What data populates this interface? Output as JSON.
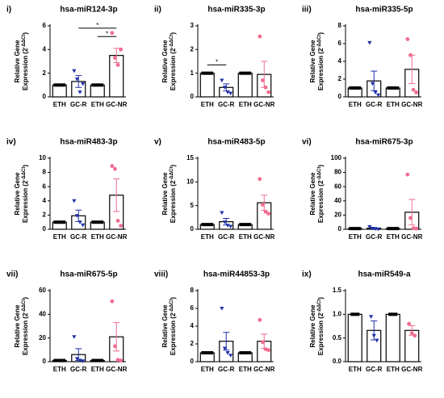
{
  "chart_data": [
    {
      "type": "bar",
      "panel": "i)",
      "title": "hsa-miR124-3p",
      "y_label": {
        "line1": "Relative Gene",
        "line2": "Expression (2",
        "sup": "-ΔΔCt",
        "close": ")"
      },
      "categories": [
        "ETH",
        "GC-R",
        "ETH",
        "GC-NR"
      ],
      "values": [
        1,
        1.3,
        1,
        3.5
      ],
      "errors": [
        0.05,
        0.5,
        0.05,
        0.6
      ],
      "points": [
        [
          1,
          1,
          1,
          1
        ],
        [
          2.2,
          1.5,
          0.4,
          1.1
        ],
        [
          1,
          1,
          1,
          1
        ],
        [
          5.4,
          3.3,
          2.7,
          4.0
        ]
      ],
      "colors": [
        "#000000",
        "#1f2fa8",
        "#000000",
        "#f06d8f"
      ],
      "markers": [
        "square",
        "triangle-down",
        "square",
        "circle"
      ],
      "ylim": [
        0,
        6
      ],
      "yticks": [
        0,
        2,
        4,
        6
      ],
      "significance": [
        {
          "from": 1,
          "to": 3,
          "y": 5.8,
          "label": "*"
        },
        {
          "from": 2,
          "to": 3,
          "y": 5.1,
          "label": "*"
        }
      ]
    },
    {
      "type": "bar",
      "panel": "ii)",
      "title": "hsa-miR335-3p",
      "y_label": {
        "line1": "Relative Gene",
        "line2": "Expression (2",
        "sup": "-ΔΔCt",
        "close": ")"
      },
      "categories": [
        "ETH",
        "GC-R",
        "ETH",
        "GC-NR"
      ],
      "values": [
        1,
        0.4,
        1,
        0.95
      ],
      "errors": [
        0.02,
        0.15,
        0.02,
        0.55
      ],
      "points": [
        [
          1,
          1,
          1,
          1
        ],
        [
          0.7,
          0.4,
          0.2,
          0.15
        ],
        [
          1,
          1,
          1,
          1
        ],
        [
          2.55,
          0.7,
          0.4,
          0.2
        ]
      ],
      "colors": [
        "#000000",
        "#1f2fa8",
        "#000000",
        "#f06d8f"
      ],
      "markers": [
        "square",
        "triangle-down",
        "square",
        "circle"
      ],
      "ylim": [
        0,
        3
      ],
      "yticks": [
        0,
        1,
        2,
        3
      ],
      "significance": [
        {
          "from": 0,
          "to": 1,
          "y": 1.35,
          "label": "*"
        }
      ]
    },
    {
      "type": "bar",
      "panel": "iii)",
      "title": "hsa-miR335-5p",
      "y_label": {
        "line1": "Relative Gene",
        "line2": "Expression (2",
        "sup": "-ΔΔCt",
        "close": ")"
      },
      "categories": [
        "ETH",
        "GC-R",
        "ETH",
        "GC-NR"
      ],
      "values": [
        1,
        1.8,
        1,
        3.1
      ],
      "errors": [
        0.05,
        1.1,
        0.05,
        1.6
      ],
      "points": [
        [
          1,
          1,
          1,
          1
        ],
        [
          6.1,
          1.5,
          0.5,
          0.2
        ],
        [
          1,
          1,
          1,
          1
        ],
        [
          6.5,
          4.7,
          0.8,
          0.5
        ]
      ],
      "colors": [
        "#000000",
        "#1f2fa8",
        "#000000",
        "#f06d8f"
      ],
      "markers": [
        "square",
        "triangle-down",
        "square",
        "circle"
      ],
      "ylim": [
        0,
        8
      ],
      "yticks": [
        0,
        2,
        4,
        6,
        8
      ],
      "significance": []
    },
    {
      "type": "bar",
      "panel": "iv)",
      "title": "hsa-miR483-3p",
      "y_label": {
        "line1": "Relative Gene",
        "line2": "Expression (2",
        "sup": "-ΔΔCt",
        "close": ")"
      },
      "categories": [
        "ETH",
        "GC-R",
        "ETH",
        "GC-NR"
      ],
      "values": [
        1,
        1.9,
        1,
        4.8
      ],
      "errors": [
        0.05,
        0.8,
        0.05,
        2.3
      ],
      "points": [
        [
          1,
          1,
          1,
          1
        ],
        [
          4.0,
          1.9,
          1.0,
          0.6
        ],
        [
          1,
          1,
          1,
          1
        ],
        [
          8.9,
          8.5,
          1.2,
          0.5
        ]
      ],
      "colors": [
        "#000000",
        "#1f2fa8",
        "#000000",
        "#f06d8f"
      ],
      "markers": [
        "square",
        "triangle-down",
        "square",
        "circle"
      ],
      "ylim": [
        0,
        10
      ],
      "yticks": [
        0,
        2,
        4,
        6,
        8,
        10
      ],
      "significance": []
    },
    {
      "type": "bar",
      "panel": "v)",
      "title": "hsa-miR483-5p",
      "y_label": {
        "line1": "Relative Gene",
        "line2": "Expression (2",
        "sup": "-ΔΔCt",
        "close": ")"
      },
      "categories": [
        "ETH",
        "GC-R",
        "ETH",
        "GC-NR"
      ],
      "values": [
        1,
        1.6,
        1,
        5.6
      ],
      "errors": [
        0.05,
        0.7,
        0.05,
        1.6
      ],
      "points": [
        [
          1,
          1,
          1,
          1
        ],
        [
          3.5,
          1.5,
          0.8,
          0.6
        ],
        [
          1,
          1,
          1,
          1
        ],
        [
          10.6,
          5.2,
          3.7,
          3.3
        ]
      ],
      "colors": [
        "#000000",
        "#1f2fa8",
        "#000000",
        "#f06d8f"
      ],
      "markers": [
        "square",
        "triangle-down",
        "square",
        "circle"
      ],
      "ylim": [
        0,
        15
      ],
      "yticks": [
        0,
        5,
        10,
        15
      ],
      "significance": []
    },
    {
      "type": "bar",
      "panel": "vi)",
      "title": "hsa-miR675-3p",
      "y_label": {
        "line1": "Relative Gene",
        "line2": "Expression (2",
        "sup": "-ΔΔCt",
        "close": ")"
      },
      "categories": [
        "ETH",
        "GC-R",
        "ETH",
        "GC-NR"
      ],
      "values": [
        1,
        1.5,
        1,
        24
      ],
      "errors": [
        0.1,
        1,
        0.1,
        18
      ],
      "points": [
        [
          1,
          1,
          1,
          1
        ],
        [
          3.5,
          1.2,
          0.5,
          0.2
        ],
        [
          1,
          1,
          1,
          1
        ],
        [
          77,
          16,
          1.5,
          1
        ]
      ],
      "colors": [
        "#000000",
        "#1f2fa8",
        "#000000",
        "#f06d8f"
      ],
      "markers": [
        "square",
        "triangle-down",
        "square",
        "circle"
      ],
      "ylim": [
        0,
        100
      ],
      "yticks": [
        0,
        20,
        40,
        60,
        80,
        100
      ],
      "significance": []
    },
    {
      "type": "bar",
      "panel": "vii)",
      "title": "hsa-miR675-5p",
      "y_label": {
        "line1": "Relative Gene",
        "line2": "Expression (2",
        "sup": "-ΔΔCt",
        "close": ")"
      },
      "categories": [
        "ETH",
        "GC-R",
        "ETH",
        "GC-NR"
      ],
      "values": [
        1,
        6,
        1,
        21
      ],
      "errors": [
        0.1,
        5,
        0.1,
        12
      ],
      "points": [
        [
          1,
          1,
          1,
          1
        ],
        [
          21,
          2.5,
          1,
          0.5
        ],
        [
          1,
          1,
          1,
          1
        ],
        [
          51,
          13,
          1.5,
          1
        ]
      ],
      "colors": [
        "#000000",
        "#1f2fa8",
        "#000000",
        "#f06d8f"
      ],
      "markers": [
        "square",
        "triangle-down",
        "square",
        "circle"
      ],
      "ylim": [
        0,
        60
      ],
      "yticks": [
        0,
        20,
        40,
        60
      ],
      "significance": []
    },
    {
      "type": "bar",
      "panel": "viii)",
      "title": "hsa-miR44853-3p",
      "y_label": {
        "line1": "Relative Gene",
        "line2": "Expression (2",
        "sup": "-ΔΔCt",
        "close": ")"
      },
      "categories": [
        "ETH",
        "GC-R",
        "ETH",
        "GC-NR"
      ],
      "values": [
        1,
        2.3,
        1,
        2.3
      ],
      "errors": [
        0.05,
        1,
        0.05,
        0.8
      ],
      "points": [
        [
          1,
          1,
          1,
          1
        ],
        [
          6.0,
          1.5,
          1,
          0.7
        ],
        [
          1,
          1,
          1,
          1
        ],
        [
          4.7,
          2.2,
          1.4,
          1.3
        ]
      ],
      "colors": [
        "#000000",
        "#1f2fa8",
        "#000000",
        "#f06d8f"
      ],
      "markers": [
        "square",
        "triangle-down",
        "square",
        "circle"
      ],
      "ylim": [
        0,
        8
      ],
      "yticks": [
        0,
        2,
        4,
        6,
        8
      ],
      "significance": []
    },
    {
      "type": "bar",
      "panel": "ix)",
      "title": "hsa-miR549-a",
      "y_label": {
        "line1": "Relative Gene",
        "line2": "Expression (2",
        "sup": "-ΔΔCt",
        "close": ")"
      },
      "categories": [
        "ETH",
        "GC-R",
        "ETH",
        "GC-NR"
      ],
      "values": [
        1,
        0.66,
        1,
        0.66
      ],
      "errors": [
        0.01,
        0.2,
        0.01,
        0.1
      ],
      "points": [
        [
          1,
          1,
          1
        ],
        [
          0.95,
          0.55,
          0.45
        ],
        [
          1,
          1,
          1
        ],
        [
          0.8,
          0.6,
          0.55
        ]
      ],
      "colors": [
        "#000000",
        "#1f2fa8",
        "#000000",
        "#f06d8f"
      ],
      "markers": [
        "square",
        "triangle-down",
        "square",
        "circle"
      ],
      "ylim": [
        0,
        1.5
      ],
      "yticks": [
        {
          "value": 0,
          "label": "0.0"
        },
        0.5,
        {
          "value": 1,
          "label": "1.0"
        },
        1.5
      ],
      "significance": []
    }
  ]
}
